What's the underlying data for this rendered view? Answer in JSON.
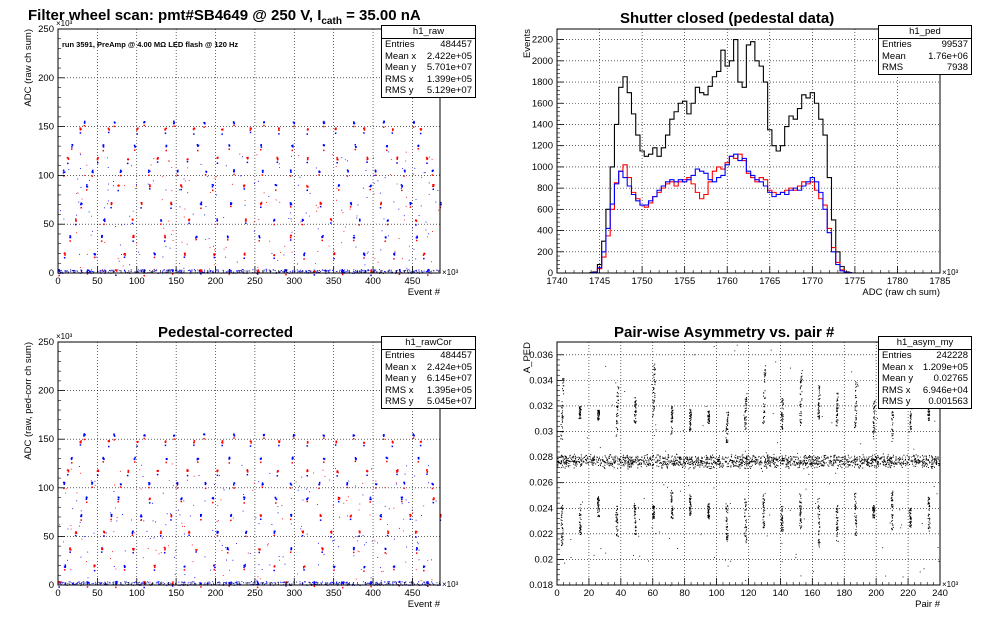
{
  "chart_data": [
    {
      "type": "scatter",
      "title": "Filter wheel scan: pmt#SB4649 @   250 V, I",
      "title_sub": "cath",
      "title_tail": " = 35.00 nA",
      "annotation": "run 3591, PreAmp @ 4.00 MΩ  LED flash @  120 Hz",
      "xlabel": "Event #",
      "ylabel": "ADC (raw ch sum)",
      "x_exponent": "×10³",
      "y_exponent": "×10³",
      "xlim": [
        0,
        485
      ],
      "ylim": [
        0,
        250
      ],
      "xticks": [
        0,
        50,
        100,
        150,
        200,
        250,
        300,
        350,
        400,
        450
      ],
      "yticks": [
        0,
        50,
        100,
        150,
        200,
        250
      ],
      "grid": true,
      "levels": [
        3,
        20,
        38,
        55,
        72,
        90,
        105,
        118,
        131,
        148,
        155
      ],
      "colors": {
        "red": "#ff0000",
        "blue": "#0000ff"
      },
      "stats": {
        "name": "h1_raw",
        "rows": [
          [
            "Entries",
            "484457"
          ],
          [
            "Mean x",
            "2.422e+05"
          ],
          [
            "Mean y",
            "5.701e+07"
          ],
          [
            "RMS x",
            "1.399e+05"
          ],
          [
            "RMS y",
            "5.129e+07"
          ]
        ]
      }
    },
    {
      "type": "line",
      "title": "Shutter closed (pedestal data)",
      "xlabel": "ADC (raw ch sum)",
      "ylabel": "Events",
      "x_exponent": "×10³",
      "xlim": [
        1740,
        1785
      ],
      "ylim": [
        0,
        2300
      ],
      "xticks": [
        1740,
        1745,
        1750,
        1755,
        1760,
        1765,
        1770,
        1775,
        1780,
        1785
      ],
      "yticks": [
        0,
        200,
        400,
        600,
        800,
        1000,
        1200,
        1400,
        1600,
        1800,
        2000,
        2200
      ],
      "grid": true,
      "x": [
        1742.5,
        1743.5,
        1744.5,
        1745,
        1745.5,
        1746,
        1746.5,
        1747,
        1747.5,
        1748,
        1748.5,
        1749,
        1749.5,
        1750,
        1750.5,
        1751,
        1751.5,
        1752,
        1752.5,
        1753,
        1753.5,
        1754,
        1754.5,
        1755,
        1755.5,
        1756,
        1756.5,
        1757,
        1757.5,
        1758,
        1758.5,
        1759,
        1759.5,
        1760,
        1760.5,
        1761,
        1761.5,
        1762,
        1762.5,
        1763,
        1763.5,
        1764,
        1764.5,
        1765,
        1765.5,
        1766,
        1766.5,
        1767,
        1767.5,
        1768,
        1768.5,
        1769,
        1769.5,
        1770,
        1770.5,
        1771,
        1771.5,
        1772,
        1772.5,
        1773,
        1773.5,
        1774,
        1775
      ],
      "series": [
        {
          "color": "#000000",
          "values": [
            0,
            0,
            10,
            80,
            300,
            600,
            1000,
            1400,
            1750,
            1850,
            1700,
            1500,
            1300,
            1150,
            1100,
            1120,
            1180,
            1100,
            1180,
            1300,
            1450,
            1520,
            1600,
            1620,
            1500,
            1600,
            1750,
            1700,
            1680,
            1760,
            1850,
            1900,
            2100,
            1950,
            2000,
            2200,
            1800,
            1750,
            2150,
            2180,
            2000,
            1950,
            1800,
            1350,
            1200,
            1150,
            1200,
            1380,
            1480,
            1450,
            1550,
            1680,
            1650,
            1700,
            1600,
            1450,
            1300,
            900,
            500,
            200,
            60,
            10,
            0
          ]
        },
        {
          "color": "#ff0000",
          "values": [
            0,
            0,
            5,
            40,
            150,
            350,
            600,
            850,
            960,
            1020,
            900,
            760,
            700,
            640,
            620,
            660,
            720,
            760,
            800,
            840,
            860,
            820,
            860,
            880,
            900,
            840,
            760,
            700,
            740,
            860,
            960,
            1000,
            980,
            1040,
            1100,
            1080,
            1120,
            1060,
            940,
            900,
            860,
            900,
            880,
            780,
            760,
            740,
            760,
            780,
            800,
            780,
            820,
            860,
            840,
            860,
            780,
            700,
            640,
            420,
            240,
            100,
            30,
            5,
            0
          ]
        },
        {
          "color": "#0000ff",
          "values": [
            0,
            0,
            5,
            50,
            200,
            420,
            650,
            840,
            960,
            900,
            820,
            740,
            680,
            640,
            640,
            680,
            720,
            780,
            820,
            860,
            880,
            860,
            880,
            860,
            880,
            920,
            980,
            960,
            940,
            880,
            860,
            900,
            920,
            1020,
            1100,
            1120,
            1060,
            1080,
            960,
            920,
            880,
            860,
            820,
            760,
            720,
            740,
            760,
            740,
            780,
            800,
            780,
            820,
            860,
            900,
            860,
            760,
            600,
            380,
            200,
            80,
            20,
            5,
            0
          ]
        }
      ],
      "stats": {
        "name": "h1_ped",
        "rows": [
          [
            "Entries",
            "99537"
          ],
          [
            "Mean",
            "1.76e+06"
          ],
          [
            "RMS",
            "7938"
          ]
        ]
      }
    },
    {
      "type": "scatter",
      "title": "Pedestal-corrected",
      "xlabel": "Event #",
      "ylabel": "ADC (raw, ped-corr ch sum)",
      "x_exponent": "×10³",
      "y_exponent": "×10³",
      "xlim": [
        0,
        485
      ],
      "ylim": [
        0,
        250
      ],
      "xticks": [
        0,
        50,
        100,
        150,
        200,
        250,
        300,
        350,
        400,
        450
      ],
      "yticks": [
        0,
        50,
        100,
        150,
        200,
        250
      ],
      "grid": true,
      "levels": [
        3,
        20,
        38,
        55,
        72,
        90,
        105,
        118,
        131,
        148,
        155
      ],
      "stats": {
        "name": "h1_rawCor",
        "rows": [
          [
            "Entries",
            "484457"
          ],
          [
            "Mean x",
            "2.424e+05"
          ],
          [
            "Mean y",
            "6.145e+07"
          ],
          [
            "RMS x",
            "1.395e+05"
          ],
          [
            "RMS y",
            "5.045e+07"
          ]
        ]
      }
    },
    {
      "type": "scatter",
      "title": "Pair-wise Asymmetry vs. pair #",
      "xlabel": "Pair #",
      "ylabel": "A_PED",
      "x_exponent": "×10³",
      "xlim": [
        0,
        240
      ],
      "ylim": [
        0.018,
        0.037
      ],
      "xticks": [
        0,
        20,
        40,
        60,
        80,
        100,
        120,
        140,
        160,
        180,
        200,
        220,
        240
      ],
      "yticks": [
        0.018,
        0.02,
        0.022,
        0.024,
        0.026,
        0.028,
        0.03,
        0.032,
        0.034,
        0.036
      ],
      "grid": true,
      "band_center": 0.0277,
      "stats": {
        "name": "h1_asym_my",
        "rows": [
          [
            "Entries",
            "242228"
          ],
          [
            "Mean x",
            "1.209e+05"
          ],
          [
            "Mean y",
            "0.02765"
          ],
          [
            "RMS x",
            "6.946e+04"
          ],
          [
            "RMS y",
            "0.001563"
          ]
        ]
      }
    }
  ]
}
